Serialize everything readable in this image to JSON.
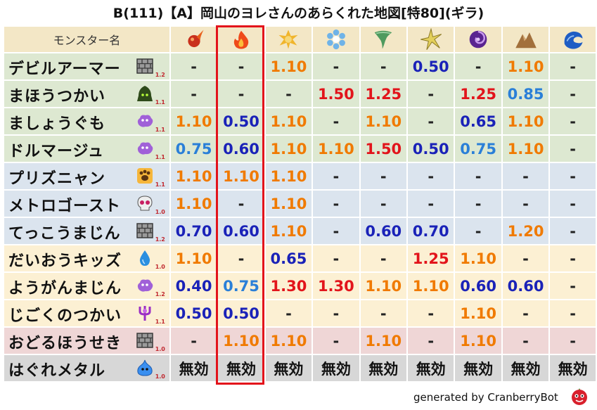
{
  "title": "B(111)【A】岡山のヨレさんのあらくれた地図[特80](ギラ)",
  "header": {
    "name_label": "モンスター名",
    "columns": [
      {
        "icon": "fire-ball-icon",
        "color": "#d63a1b"
      },
      {
        "icon": "flame-icon",
        "color": "#f05a18"
      },
      {
        "icon": "explosion-icon",
        "color": "#e8b430"
      },
      {
        "icon": "ice-crystal-icon",
        "color": "#5fa8e0"
      },
      {
        "icon": "tornado-icon",
        "color": "#5c9b66"
      },
      {
        "icon": "lightning-icon",
        "color": "#c8b04a"
      },
      {
        "icon": "dark-swirl-icon",
        "color": "#6a2c9a"
      },
      {
        "icon": "rock-mountain-icon",
        "color": "#a0713f"
      },
      {
        "icon": "water-wave-icon",
        "color": "#2060c8"
      }
    ]
  },
  "rows": [
    {
      "name": "デビルアーマー",
      "icon": "brick-wall-icon",
      "level": "1.2",
      "bg": "green",
      "values": [
        "-",
        "-",
        "1.10",
        "-",
        "-",
        "0.50",
        "-",
        "1.10",
        "-"
      ]
    },
    {
      "name": "まほうつかい",
      "icon": "hooded-mage-icon",
      "level": "1.1",
      "bg": "green",
      "values": [
        "-",
        "-",
        "-",
        "1.50",
        "1.25",
        "-",
        "1.25",
        "0.85",
        "-"
      ]
    },
    {
      "name": "ましょうぐも",
      "icon": "purple-cloud-icon",
      "level": "1.1",
      "bg": "green",
      "values": [
        "1.10",
        "0.50",
        "1.10",
        "-",
        "1.10",
        "-",
        "0.65",
        "1.10",
        "-"
      ]
    },
    {
      "name": "ドルマージュ",
      "icon": "purple-cloud-icon",
      "level": "1.1",
      "bg": "green",
      "values": [
        "0.75",
        "0.60",
        "1.10",
        "1.10",
        "1.50",
        "0.50",
        "0.75",
        "1.10",
        "-"
      ]
    },
    {
      "name": "プリズニャン",
      "icon": "paw-icon",
      "level": "1.1",
      "bg": "blue",
      "values": [
        "1.10",
        "1.10",
        "1.10",
        "-",
        "-",
        "-",
        "-",
        "-",
        "-"
      ]
    },
    {
      "name": "メトロゴースト",
      "icon": "skull-icon",
      "level": "1.0",
      "bg": "blue",
      "values": [
        "1.10",
        "-",
        "1.10",
        "-",
        "-",
        "-",
        "-",
        "-",
        "-"
      ]
    },
    {
      "name": "てっこうまじん",
      "icon": "brick-wall-icon",
      "level": "1.2",
      "bg": "blue",
      "values": [
        "0.70",
        "0.60",
        "1.10",
        "-",
        "0.60",
        "0.70",
        "-",
        "1.20",
        "-"
      ]
    },
    {
      "name": "だいおうキッズ",
      "icon": "water-drop-icon",
      "level": "1.0",
      "bg": "yellow",
      "values": [
        "1.10",
        "-",
        "0.65",
        "-",
        "-",
        "1.25",
        "1.10",
        "-",
        "-"
      ]
    },
    {
      "name": "ようがんまじん",
      "icon": "purple-cloud-icon",
      "level": "1.2",
      "bg": "yellow",
      "values": [
        "0.40",
        "0.75",
        "1.30",
        "1.30",
        "1.10",
        "1.10",
        "0.60",
        "0.60",
        "-"
      ]
    },
    {
      "name": "じごくのつかい",
      "icon": "trident-icon",
      "level": "1.1",
      "bg": "yellow",
      "values": [
        "0.50",
        "0.50",
        "-",
        "-",
        "-",
        "-",
        "1.10",
        "-",
        "-"
      ]
    },
    {
      "name": "おどるほうせき",
      "icon": "brick-wall-icon",
      "level": "1.0",
      "bg": "pink",
      "values": [
        "-",
        "1.10",
        "1.10",
        "-",
        "1.10",
        "-",
        "1.10",
        "-",
        "-"
      ]
    },
    {
      "name": "はぐれメタル",
      "icon": "blue-slime-icon",
      "level": "1.0",
      "bg": "gray",
      "values": [
        "無効",
        "無効",
        "無効",
        "無効",
        "無効",
        "無効",
        "無効",
        "無効",
        "無効"
      ]
    }
  ],
  "colors": {
    "above_one": "#f07a00",
    "strong_weak": "#e2141b",
    "resist": "#1a22b8",
    "mild_resist": "#2a7fd8",
    "highlight_border": "#e3131b"
  },
  "footer": {
    "text": "generated by CranberryBot",
    "icon": "cranberry-bot-icon"
  }
}
